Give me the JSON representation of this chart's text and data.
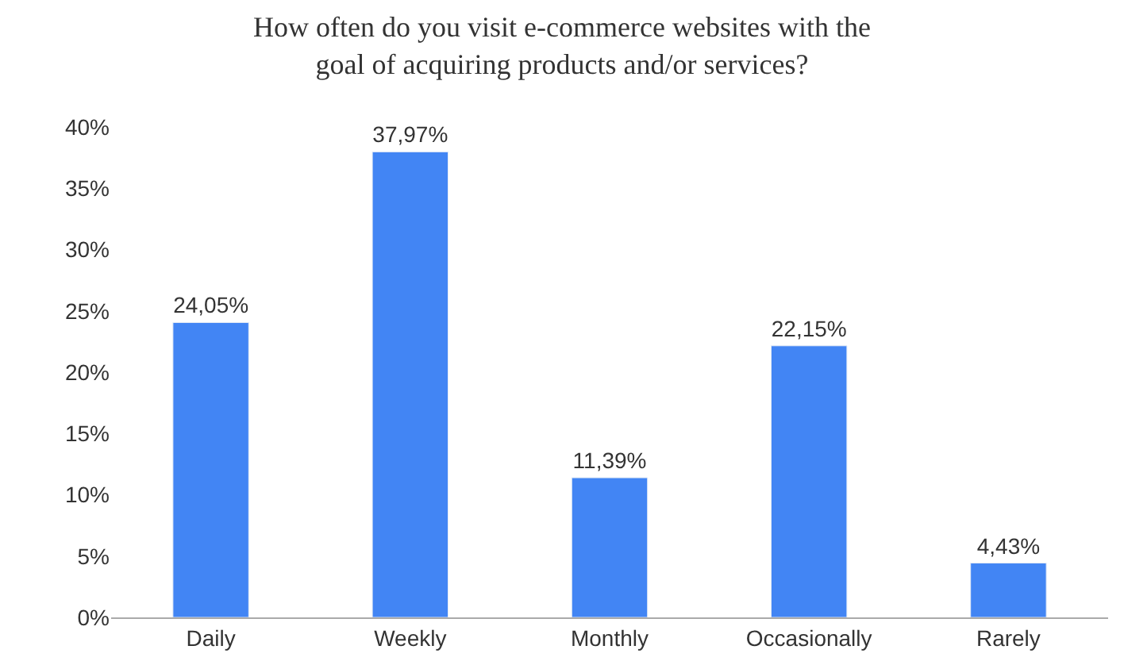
{
  "chart_data": {
    "type": "bar",
    "title": "How often do you visit e-commerce websites with the goal of acquiring products and/or services?",
    "categories": [
      "Daily",
      "Weekly",
      "Monthly",
      "Occasionally",
      "Rarely"
    ],
    "values": [
      24.05,
      37.97,
      11.39,
      22.15,
      4.43
    ],
    "value_labels": [
      "24,05%",
      "37,97%",
      "11,39%",
      "22,15%",
      "4,43%"
    ],
    "color": "#4285f4",
    "ylim": [
      0,
      40
    ],
    "yticks": [
      {
        "value": 0,
        "label": "0%"
      },
      {
        "value": 5,
        "label": "5%"
      },
      {
        "value": 10,
        "label": "10%"
      },
      {
        "value": 15,
        "label": "15%"
      },
      {
        "value": 20,
        "label": "20%"
      },
      {
        "value": 25,
        "label": "25%"
      },
      {
        "value": 30,
        "label": "30%"
      },
      {
        "value": 35,
        "label": "35%"
      },
      {
        "value": 40,
        "label": "40%"
      }
    ],
    "data_labels": false
  }
}
